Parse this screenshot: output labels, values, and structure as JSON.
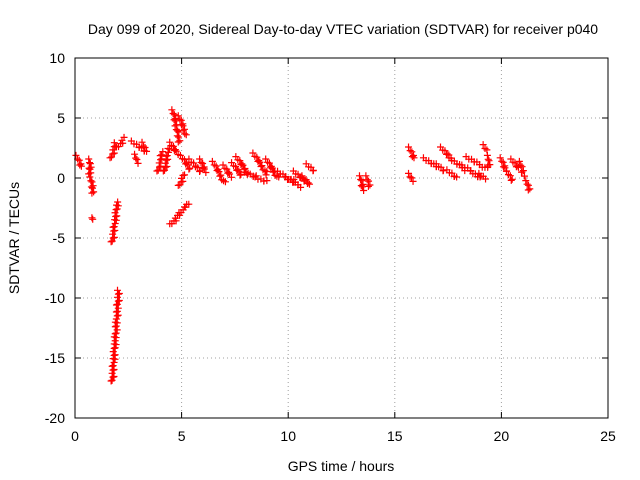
{
  "chart_data": {
    "type": "scatter",
    "title": "Day 099 of 2020, Sidereal Day-to-day VTEC variation (SDTVAR) for receiver p040",
    "xlabel": "GPS time / hours",
    "ylabel": "SDTVAR / TECUs",
    "xlim": [
      0,
      25
    ],
    "ylim": [
      -20,
      10
    ],
    "xticks": [
      0,
      5,
      10,
      15,
      20,
      25
    ],
    "yticks": [
      -20,
      -15,
      -10,
      -5,
      0,
      5,
      10
    ],
    "grid": true,
    "marker": "+",
    "color": "#ff0000",
    "segments": [
      [
        0.1,
        1.8,
        0.3,
        0.9
      ],
      [
        0.7,
        1.5,
        0.7,
        0.3
      ],
      [
        0.75,
        0.0,
        0.85,
        -1.3
      ],
      [
        0.85,
        -3.4,
        0.85,
        -3.4
      ],
      [
        1.7,
        1.6,
        1.9,
        2.9
      ],
      [
        1.75,
        -17.0,
        2.05,
        -9.4
      ],
      [
        1.75,
        -5.4,
        2.0,
        -2.0
      ],
      [
        2.0,
        2.5,
        2.3,
        3.3
      ],
      [
        2.7,
        3.0,
        3.3,
        2.2
      ],
      [
        2.85,
        1.9,
        2.9,
        1.3
      ],
      [
        3.2,
        2.9,
        3.3,
        2.3
      ],
      [
        3.9,
        0.5,
        4.1,
        2.2
      ],
      [
        4.2,
        0.5,
        4.4,
        2.5
      ],
      [
        4.5,
        2.9,
        4.8,
        2.0
      ],
      [
        4.6,
        5.6,
        4.9,
        3.0
      ],
      [
        4.9,
        5.1,
        5.2,
        3.6
      ],
      [
        4.5,
        -3.9,
        5.3,
        -2.1
      ],
      [
        4.9,
        -0.7,
        5.1,
        0.3
      ],
      [
        5.0,
        1.8,
        5.4,
        0.7
      ],
      [
        5.4,
        1.5,
        5.9,
        0.5
      ],
      [
        5.9,
        1.5,
        6.1,
        0.5
      ],
      [
        6.5,
        1.3,
        7.0,
        -0.4
      ],
      [
        7.0,
        1.0,
        7.3,
        0.1
      ],
      [
        7.4,
        1.2,
        7.8,
        0.2
      ],
      [
        7.6,
        1.7,
        8.1,
        0.4
      ],
      [
        8.0,
        0.4,
        8.5,
        0.1
      ],
      [
        8.4,
        2.0,
        9.0,
        0.3
      ],
      [
        8.5,
        0.0,
        9.0,
        -0.3
      ],
      [
        9.0,
        1.5,
        9.5,
        0.0
      ],
      [
        9.3,
        0.7,
        10.3,
        -0.3
      ],
      [
        9.9,
        0.0,
        10.6,
        -0.7
      ],
      [
        10.3,
        0.5,
        10.8,
        -0.3
      ],
      [
        10.7,
        0.1,
        11.0,
        -0.6
      ],
      [
        10.9,
        1.1,
        11.2,
        0.6
      ],
      [
        13.4,
        0.1,
        13.5,
        -1.0
      ],
      [
        13.7,
        0.1,
        13.8,
        -0.7
      ],
      [
        15.7,
        2.5,
        15.9,
        1.6
      ],
      [
        15.7,
        0.3,
        15.8,
        -0.2
      ],
      [
        16.4,
        1.6,
        17.0,
        0.9
      ],
      [
        17.0,
        1.1,
        17.3,
        0.6
      ],
      [
        17.2,
        2.5,
        17.6,
        1.7
      ],
      [
        17.5,
        0.6,
        17.9,
        0.0
      ],
      [
        17.6,
        1.6,
        18.3,
        0.7
      ],
      [
        18.2,
        1.0,
        18.6,
        0.6
      ],
      [
        18.4,
        1.7,
        19.3,
        0.8
      ],
      [
        18.6,
        0.5,
        19.0,
        0.0
      ],
      [
        19.0,
        0.3,
        19.2,
        0.0
      ],
      [
        19.2,
        2.7,
        19.3,
        2.3
      ],
      [
        19.4,
        1.8,
        19.4,
        1.0
      ],
      [
        20.0,
        1.6,
        20.2,
        0.6
      ],
      [
        20.3,
        0.5,
        20.5,
        -0.2
      ],
      [
        20.5,
        1.5,
        20.8,
        0.8
      ],
      [
        20.9,
        1.3,
        21.0,
        0.5
      ],
      [
        21.0,
        0.4,
        21.1,
        0.2
      ],
      [
        21.2,
        -0.3,
        21.3,
        -1.0
      ]
    ]
  }
}
